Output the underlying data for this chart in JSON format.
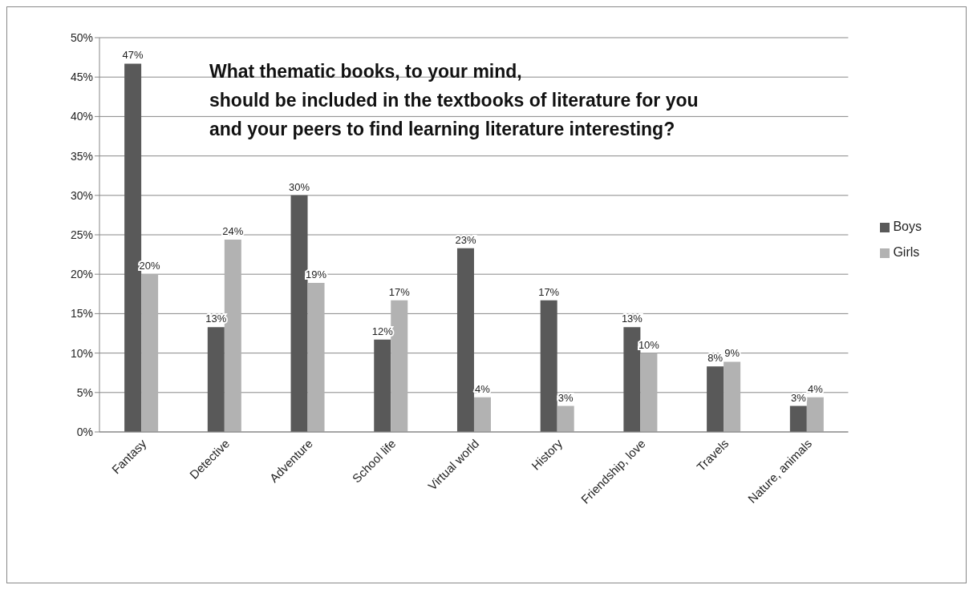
{
  "chart_data": {
    "type": "bar",
    "title": "What thematic books, to your mind,\nshould be included in the textbooks of literature for you\nand your peers to find learning literature interesting?",
    "categories": [
      "Fantasy",
      "Detective",
      "Adventure",
      "School life",
      "Virtual world",
      "History",
      "Friendship, love",
      "Travels",
      "Nature, animals"
    ],
    "series": [
      {
        "name": "Boys",
        "color": "#595959",
        "values": [
          46.7,
          13.3,
          30,
          11.7,
          23.3,
          16.7,
          13.3,
          8.3,
          3.3
        ],
        "value_labels": [
          "47%",
          "13%",
          "30%",
          "12%",
          "23%",
          "17%",
          "13%",
          "8%",
          "3%"
        ]
      },
      {
        "name": "Girls",
        "color": "#b2b2b2",
        "values": [
          20,
          24.4,
          18.9,
          16.7,
          4.4,
          3.3,
          10,
          8.9,
          4.4
        ],
        "value_labels": [
          "20%",
          "24%",
          "19%",
          "17%",
          "4%",
          "3%",
          "10%",
          "9%",
          "4%"
        ]
      }
    ],
    "ylim": [
      0,
      50
    ],
    "yticks": [
      {
        "value": 0,
        "label": "0%"
      },
      {
        "value": 5,
        "label": "5%"
      },
      {
        "value": 10,
        "label": "10%"
      },
      {
        "value": 15,
        "label": "15%"
      },
      {
        "value": 20,
        "label": "20%"
      },
      {
        "value": 25,
        "label": "25%"
      },
      {
        "value": 30,
        "label": "30%"
      },
      {
        "value": 35,
        "label": "35%"
      },
      {
        "value": 40,
        "label": "40%"
      },
      {
        "value": 45,
        "label": "45%"
      },
      {
        "value": 50,
        "label": "50%"
      }
    ],
    "grid": "y",
    "legend": "right"
  }
}
